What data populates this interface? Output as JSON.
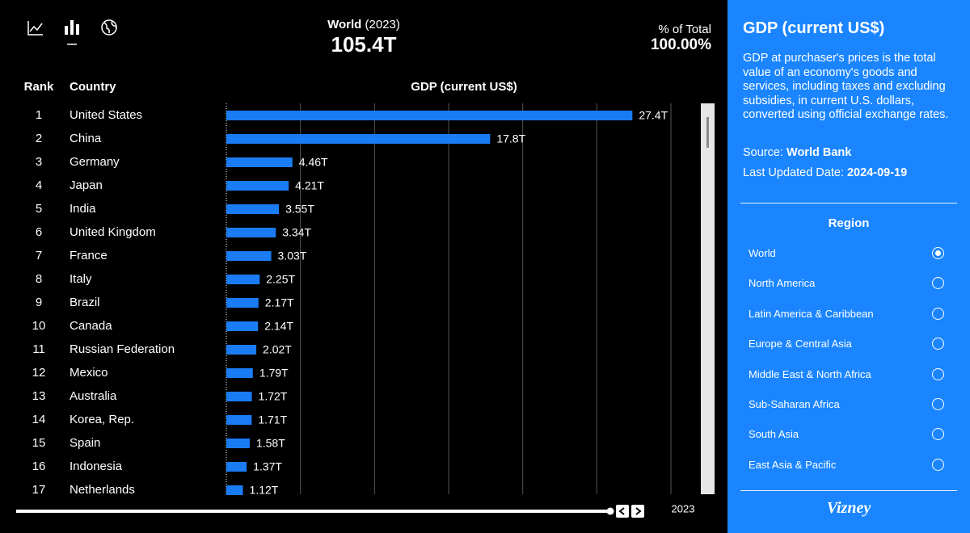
{
  "header": {
    "region": "World",
    "year": "(2023)",
    "total": "105.4T",
    "share_label": "% of Total",
    "share": "100.00%"
  },
  "chart_data": {
    "type": "bar",
    "orientation": "horizontal",
    "title": "GDP (current US$)",
    "rank_header": "Rank",
    "category_header": "Country",
    "ranks": [
      1,
      2,
      3,
      4,
      5,
      6,
      7,
      8,
      9,
      10,
      11,
      12,
      13,
      14,
      15,
      16,
      17
    ],
    "categories": [
      "United States",
      "China",
      "Germany",
      "Japan",
      "India",
      "United Kingdom",
      "France",
      "Italy",
      "Brazil",
      "Canada",
      "Russian Federation",
      "Mexico",
      "Australia",
      "Korea, Rep.",
      "Spain",
      "Indonesia",
      "Netherlands"
    ],
    "values": [
      27.4,
      17.8,
      4.46,
      4.21,
      3.55,
      3.34,
      3.03,
      2.25,
      2.17,
      2.14,
      2.02,
      1.79,
      1.72,
      1.71,
      1.58,
      1.37,
      1.12
    ],
    "value_labels": [
      "27.4T",
      "17.8T",
      "4.46T",
      "4.21T",
      "3.55T",
      "3.34T",
      "3.03T",
      "2.25T",
      "2.17T",
      "2.14T",
      "2.02T",
      "1.79T",
      "1.72T",
      "1.71T",
      "1.58T",
      "1.37T",
      "1.12T"
    ],
    "color": "#1a7cf5",
    "xlim": [
      0,
      30
    ],
    "xticks": [
      0,
      5,
      10,
      15,
      20,
      25,
      30
    ],
    "grid": true
  },
  "timeline": {
    "year": "2023"
  },
  "sidebar": {
    "title": "GDP (current US$)",
    "description": "GDP at purchaser's prices is the total value of an economy's goods and services, including taxes and excluding subsidies, in current U.S. dollars, converted using official exchange rates.",
    "source_label": "Source:",
    "source": "World Bank",
    "updated_label": "Last Updated Date:",
    "updated": "2024-09-19",
    "region_heading": "Region",
    "regions": [
      "World",
      "North America",
      "Latin America & Caribbean",
      "Europe & Central Asia",
      "Middle East & North Africa",
      "Sub-Saharan Africa",
      "South Asia",
      "East Asia & Pacific"
    ],
    "selected": 0,
    "brand": "Vizney"
  }
}
